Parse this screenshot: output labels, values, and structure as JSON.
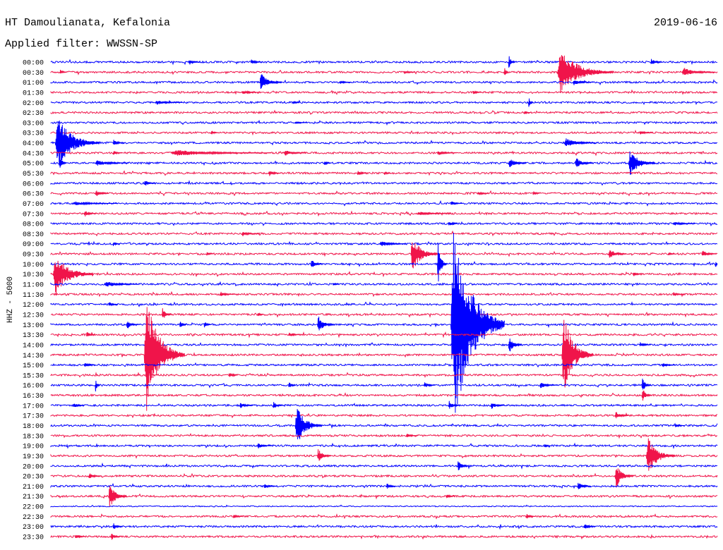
{
  "chart_data": {
    "type": "line",
    "title": "HT Damoulianata, Kefalonia",
    "date": "2019-06-16",
    "subtitle": "Applied filter: WWSSN-SP",
    "ylabel": "HHZ - 5000",
    "series_colors": [
      "#0000ff",
      "#f0144a"
    ],
    "rows": [
      {
        "time": "00:00",
        "events": [
          {
            "minute": 6.2,
            "amplitude": 0.25,
            "duration": 0.5
          },
          {
            "minute": 9.0,
            "amplitude": 0.25,
            "duration": 0.5
          },
          {
            "minute": 20.6,
            "amplitude": 0.8,
            "duration": 0.3
          },
          {
            "minute": 27.0,
            "amplitude": 0.4,
            "duration": 0.5
          }
        ]
      },
      {
        "time": "00:30",
        "events": [
          {
            "minute": 0.4,
            "amplitude": 0.3,
            "duration": 0.3
          },
          {
            "minute": 15.9,
            "amplitude": 0.2,
            "duration": 0.5
          },
          {
            "minute": 20.4,
            "amplitude": 0.6,
            "duration": 0.2
          },
          {
            "minute": 22.8,
            "amplitude": 2.3,
            "duration": 2.5
          },
          {
            "minute": 28.4,
            "amplitude": 0.45,
            "duration": 1.5
          }
        ]
      },
      {
        "time": "01:00",
        "events": [
          {
            "minute": 9.4,
            "amplitude": 0.9,
            "duration": 1.0
          },
          {
            "minute": 13.0,
            "amplitude": 0.2,
            "duration": 0.5
          },
          {
            "minute": 23.5,
            "amplitude": 0.3,
            "duration": 0.8
          }
        ]
      },
      {
        "time": "01:30",
        "events": [
          {
            "minute": 8.6,
            "amplitude": 0.2,
            "duration": 0.8
          },
          {
            "minute": 19.0,
            "amplitude": 0.2,
            "duration": 0.4
          }
        ]
      },
      {
        "time": "02:00",
        "events": [
          {
            "minute": 4.7,
            "amplitude": 0.25,
            "duration": 1.2
          },
          {
            "minute": 10.9,
            "amplitude": 0.2,
            "duration": 0.3
          },
          {
            "minute": 21.5,
            "amplitude": 0.6,
            "duration": 0.2
          }
        ]
      },
      {
        "time": "02:30",
        "events": [
          {
            "minute": 21.3,
            "amplitude": 0.2,
            "duration": 0.3
          }
        ]
      },
      {
        "time": "03:00",
        "events": [
          {
            "minute": 11.0,
            "amplitude": 0.15,
            "duration": 0.5
          }
        ]
      },
      {
        "time": "03:30",
        "events": [
          {
            "minute": 7.2,
            "amplitude": 0.3,
            "duration": 0.3
          },
          {
            "minute": 26.5,
            "amplitude": 0.2,
            "duration": 0.6
          }
        ]
      },
      {
        "time": "04:00",
        "events": [
          {
            "minute": 0.2,
            "amplitude": 2.7,
            "duration": 2.0
          },
          {
            "minute": 2.8,
            "amplitude": 0.35,
            "duration": 0.5
          },
          {
            "minute": 23.1,
            "amplitude": 0.5,
            "duration": 1.4
          }
        ]
      },
      {
        "time": "04:30",
        "events": [
          {
            "minute": 2.8,
            "amplitude": 0.25,
            "duration": 0.4
          },
          {
            "minute": 5.4,
            "amplitude": 0.3,
            "duration": 4.5
          },
          {
            "minute": 10.5,
            "amplitude": 0.3,
            "duration": 1.0
          },
          {
            "minute": 17.4,
            "amplitude": 0.25,
            "duration": 0.8
          }
        ]
      },
      {
        "time": "05:00",
        "events": [
          {
            "minute": 0.4,
            "amplitude": 0.8,
            "duration": 0.3
          },
          {
            "minute": 2.0,
            "amplitude": 0.3,
            "duration": 1.5
          },
          {
            "minute": 12.3,
            "amplitude": 0.3,
            "duration": 0.3
          },
          {
            "minute": 20.6,
            "amplitude": 0.5,
            "duration": 0.8
          },
          {
            "minute": 23.6,
            "amplitude": 0.55,
            "duration": 0.8
          },
          {
            "minute": 26.0,
            "amplitude": 1.4,
            "duration": 1.2
          }
        ]
      },
      {
        "time": "05:30",
        "events": [
          {
            "minute": 9.8,
            "amplitude": 0.35,
            "duration": 0.5
          },
          {
            "minute": 13.8,
            "amplitude": 0.3,
            "duration": 0.4
          },
          {
            "minute": 15.0,
            "amplitude": 0.25,
            "duration": 0.3
          }
        ]
      },
      {
        "time": "06:00",
        "events": [
          {
            "minute": 4.2,
            "amplitude": 0.35,
            "duration": 0.5
          }
        ]
      },
      {
        "time": "06:30",
        "events": [
          {
            "minute": 2.0,
            "amplitude": 0.35,
            "duration": 0.6
          },
          {
            "minute": 19.2,
            "amplitude": 0.2,
            "duration": 0.5
          },
          {
            "minute": 21.7,
            "amplitude": 0.25,
            "duration": 0.3
          }
        ]
      },
      {
        "time": "07:00",
        "events": [
          {
            "minute": 1.0,
            "amplitude": 0.2,
            "duration": 2.0
          },
          {
            "minute": 18.0,
            "amplitude": 0.25,
            "duration": 0.5
          }
        ]
      },
      {
        "time": "07:30",
        "events": [
          {
            "minute": 1.5,
            "amplitude": 0.35,
            "duration": 0.5
          },
          {
            "minute": 16.5,
            "amplitude": 0.2,
            "duration": 1.5
          }
        ]
      },
      {
        "time": "08:00",
        "events": [
          {
            "minute": 17.9,
            "amplitude": 0.3,
            "duration": 0.4
          },
          {
            "minute": 28.0,
            "amplitude": 0.2,
            "duration": 1.0
          }
        ]
      },
      {
        "time": "08:30",
        "events": [
          {
            "minute": 8.6,
            "amplitude": 0.2,
            "duration": 0.8
          }
        ]
      },
      {
        "time": "09:00",
        "events": [
          {
            "minute": 2.8,
            "amplitude": 0.25,
            "duration": 0.3
          },
          {
            "minute": 14.8,
            "amplitude": 0.3,
            "duration": 1.2
          }
        ]
      },
      {
        "time": "09:30",
        "events": [
          {
            "minute": 7.0,
            "amplitude": 0.2,
            "duration": 0.3
          },
          {
            "minute": 16.2,
            "amplitude": 1.8,
            "duration": 1.2
          },
          {
            "minute": 25.1,
            "amplitude": 0.5,
            "duration": 0.8
          },
          {
            "minute": 27.8,
            "amplitude": 0.2,
            "duration": 0.3
          },
          {
            "minute": 29.3,
            "amplitude": 0.4,
            "duration": 0.6
          }
        ]
      },
      {
        "time": "10:00",
        "events": [
          {
            "minute": 11.7,
            "amplitude": 0.55,
            "duration": 0.5
          },
          {
            "minute": 17.4,
            "amplitude": 2.2,
            "duration": 0.4
          },
          {
            "minute": 29.9,
            "amplitude": 0.6,
            "duration": 0.1
          }
        ]
      },
      {
        "time": "10:30",
        "events": [
          {
            "minute": 0.1,
            "amplitude": 2.2,
            "duration": 1.8
          },
          {
            "minute": 26.2,
            "amplitude": 0.25,
            "duration": 0.4
          }
        ]
      },
      {
        "time": "11:00",
        "events": [
          {
            "minute": 2.4,
            "amplitude": 0.35,
            "duration": 1.5
          },
          {
            "minute": 12.7,
            "amplitude": 0.2,
            "duration": 0.3
          }
        ]
      },
      {
        "time": "11:30",
        "events": [
          {
            "minute": 7.6,
            "amplitude": 0.3,
            "duration": 0.6
          },
          {
            "minute": 28.0,
            "amplitude": 0.2,
            "duration": 0.5
          }
        ]
      },
      {
        "time": "12:00",
        "events": [
          {
            "minute": 2.6,
            "amplitude": 0.25,
            "duration": 0.4
          }
        ]
      },
      {
        "time": "12:30",
        "events": [
          {
            "minute": 5.0,
            "amplitude": 0.7,
            "duration": 0.4
          },
          {
            "minute": 9.3,
            "amplitude": 0.2,
            "duration": 0.3
          }
        ]
      },
      {
        "time": "13:00",
        "events": [
          {
            "minute": 3.4,
            "amplitude": 0.5,
            "duration": 0.5
          },
          {
            "minute": 5.8,
            "amplitude": 0.5,
            "duration": 0.3
          },
          {
            "minute": 6.9,
            "amplitude": 0.4,
            "duration": 0.3
          },
          {
            "minute": 12.0,
            "amplitude": 0.9,
            "duration": 0.7
          },
          {
            "minute": 18.0,
            "amplitude": 10.5,
            "duration": 2.4
          }
        ]
      },
      {
        "time": "13:30",
        "events": [
          {
            "minute": 1.6,
            "amplitude": 0.3,
            "duration": 0.4
          },
          {
            "minute": 10.7,
            "amplitude": 0.25,
            "duration": 0.5
          }
        ]
      },
      {
        "time": "14:00",
        "events": [
          {
            "minute": 20.6,
            "amplitude": 0.9,
            "duration": 0.6
          },
          {
            "minute": 26.5,
            "amplitude": 0.25,
            "duration": 0.5
          }
        ]
      },
      {
        "time": "14:30",
        "events": [
          {
            "minute": 4.2,
            "amplitude": 5.8,
            "duration": 1.8
          },
          {
            "minute": 23.0,
            "amplitude": 4.3,
            "duration": 1.4
          }
        ]
      },
      {
        "time": "15:00",
        "events": [
          {
            "minute": 1.5,
            "amplitude": 0.25,
            "duration": 0.5
          },
          {
            "minute": 27.5,
            "amplitude": 0.25,
            "duration": 0.6
          }
        ]
      },
      {
        "time": "15:30",
        "events": [
          {
            "minute": 8.0,
            "amplitude": 0.35,
            "duration": 0.4
          }
        ]
      },
      {
        "time": "16:00",
        "events": [
          {
            "minute": 2.0,
            "amplitude": 0.7,
            "duration": 0.2
          },
          {
            "minute": 10.7,
            "amplitude": 0.4,
            "duration": 0.3
          },
          {
            "minute": 16.8,
            "amplitude": 0.35,
            "duration": 0.5
          },
          {
            "minute": 22.0,
            "amplitude": 0.3,
            "duration": 0.8
          },
          {
            "minute": 26.6,
            "amplitude": 0.8,
            "duration": 0.4
          }
        ]
      },
      {
        "time": "16:30",
        "events": [
          {
            "minute": 26.6,
            "amplitude": 0.8,
            "duration": 0.4
          }
        ]
      },
      {
        "time": "17:00",
        "events": [
          {
            "minute": 1.0,
            "amplitude": 0.3,
            "duration": 0.5
          },
          {
            "minute": 8.5,
            "amplitude": 0.3,
            "duration": 0.6
          },
          {
            "minute": 10.0,
            "amplitude": 0.55,
            "duration": 0.4
          },
          {
            "minute": 17.9,
            "amplitude": 0.45,
            "duration": 0.5
          },
          {
            "minute": 19.8,
            "amplitude": 0.4,
            "duration": 0.6
          }
        ]
      },
      {
        "time": "17:30",
        "events": [
          {
            "minute": 25.4,
            "amplitude": 0.45,
            "duration": 0.6
          }
        ]
      },
      {
        "time": "18:00",
        "events": [
          {
            "minute": 11.0,
            "amplitude": 2.0,
            "duration": 1.2
          },
          {
            "minute": 28.1,
            "amplitude": 0.2,
            "duration": 0.4
          }
        ]
      },
      {
        "time": "18:30",
        "events": [
          {
            "minute": 16.0,
            "amplitude": 0.2,
            "duration": 0.5
          }
        ]
      },
      {
        "time": "19:00",
        "events": [
          {
            "minute": 9.3,
            "amplitude": 0.3,
            "duration": 0.6
          },
          {
            "minute": 22.2,
            "amplitude": 0.2,
            "duration": 0.3
          }
        ]
      },
      {
        "time": "19:30",
        "events": [
          {
            "minute": 12.0,
            "amplitude": 0.75,
            "duration": 0.6
          },
          {
            "minute": 26.8,
            "amplitude": 1.9,
            "duration": 1.3
          }
        ]
      },
      {
        "time": "20:00",
        "events": [
          {
            "minute": 18.3,
            "amplitude": 0.6,
            "duration": 0.5
          }
        ]
      },
      {
        "time": "20:30",
        "events": [
          {
            "minute": 1.7,
            "amplitude": 0.3,
            "duration": 0.6
          },
          {
            "minute": 25.4,
            "amplitude": 1.2,
            "duration": 0.8
          }
        ]
      },
      {
        "time": "21:00",
        "events": [
          {
            "minute": 9.6,
            "amplitude": 0.3,
            "duration": 0.5
          },
          {
            "minute": 15.1,
            "amplitude": 0.35,
            "duration": 0.4
          },
          {
            "minute": 23.7,
            "amplitude": 0.4,
            "duration": 0.6
          }
        ]
      },
      {
        "time": "21:30",
        "events": [
          {
            "minute": 2.6,
            "amplitude": 1.3,
            "duration": 0.8
          },
          {
            "minute": 17.8,
            "amplitude": 0.2,
            "duration": 0.4
          }
        ]
      },
      {
        "time": "22:00",
        "events": []
      },
      {
        "time": "22:30",
        "events": [
          {
            "minute": 8.2,
            "amplitude": 0.25,
            "duration": 0.4
          },
          {
            "minute": 21.4,
            "amplitude": 0.25,
            "duration": 0.4
          }
        ]
      },
      {
        "time": "23:00",
        "events": [
          {
            "minute": 2.8,
            "amplitude": 0.35,
            "duration": 0.4
          },
          {
            "minute": 24.0,
            "amplitude": 0.35,
            "duration": 0.5
          }
        ]
      },
      {
        "time": "23:30",
        "events": [
          {
            "minute": 1.1,
            "amplitude": 0.3,
            "duration": 0.4
          },
          {
            "minute": 2.7,
            "amplitude": 0.4,
            "duration": 0.4
          }
        ]
      }
    ]
  }
}
